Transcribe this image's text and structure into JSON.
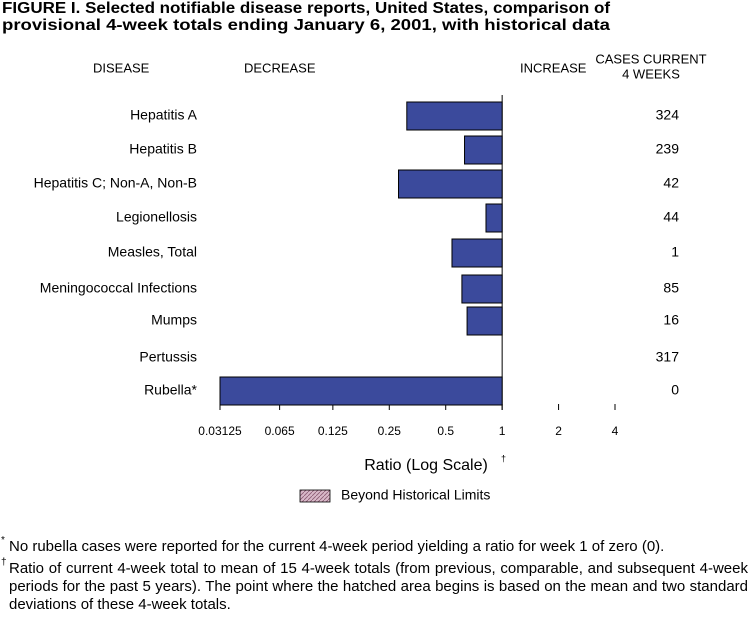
{
  "chart_data": {
    "type": "bar",
    "orientation": "horizontal",
    "x_scale": "log",
    "title": [
      "FIGURE I. Selected notifiable disease reports, United States, comparison of",
      "provisional 4-week totals ending January 6, 2001, with historical data"
    ],
    "column_headers": {
      "disease": "DISEASE",
      "decrease": "DECREASE",
      "increase": "INCREASE",
      "cases": [
        "CASES CURRENT",
        "4 WEEKS"
      ]
    },
    "categories": [
      "Hepatitis A",
      "Hepatitis B",
      "Hepatitis C; Non-A, Non-B",
      "Legionellosis",
      "Measles, Total",
      "Meningococcal Infections",
      "Mumps",
      "Pertussis",
      "Rubella*"
    ],
    "values": [
      0.31,
      0.63,
      0.28,
      0.82,
      0.54,
      0.61,
      0.65,
      1,
      0.03125
    ],
    "cases": [
      324,
      239,
      42,
      44,
      1,
      85,
      16,
      317,
      0
    ],
    "color": "#3b4a9c",
    "xlim": [
      0.03125,
      4
    ],
    "xticks": [
      0.03125,
      0.065,
      0.125,
      0.25,
      0.5,
      1,
      2,
      4
    ],
    "x_label": "Ratio (Log Scale)",
    "x_label_note": "†",
    "legend": {
      "label": "Beyond Historical Limits",
      "color": "#c9a0b4"
    },
    "footnotes": [
      {
        "marker": "*",
        "text": "No rubella cases were reported for the current 4-week period yielding a ratio for week 1 of zero (0)."
      },
      {
        "marker": "†",
        "text": "Ratio of current 4-week total to mean of 15 4-week totals (from previous, comparable, and subsequent 4-week periods for the past 5 years). The point where the hatched area begins is based on the mean and two standard deviations of these 4-week totals."
      }
    ]
  }
}
